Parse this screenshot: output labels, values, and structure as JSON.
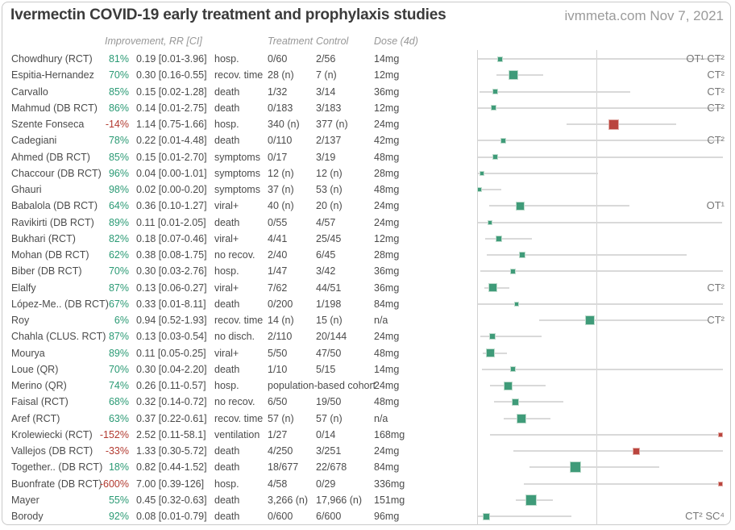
{
  "header": {
    "title": "Ivermectin COVID-19 early treatment and prophylaxis studies",
    "watermark": "ivmmeta.com Nov 7, 2021"
  },
  "columns": {
    "improvement_rr": "Improvement, RR [CI]",
    "treatment": "Treatment",
    "control": "Control",
    "dose": "Dose (4d)"
  },
  "colors": {
    "pct_green": "#2a9a74",
    "pct_red": "#b23a30",
    "marker_green": "#3f9b79",
    "marker_red": "#ba453e",
    "ci_line": "#d9d9d9",
    "axis_line": "#d2d2d2"
  },
  "chart_data": {
    "type": "forest",
    "title": "Ivermectin COVID-19 early treatment and prophylaxis studies",
    "axis": {
      "scale": "linear relative risk",
      "left_edge_rr": 0.0,
      "reference_line_rr": 1.0,
      "right_clip_rr": 2.05,
      "gridlines": false
    },
    "legend": {
      "green_marker": "improvement (RR < 1)",
      "red_marker": "worse outcome (RR > 1)",
      "marker_size": "study weight"
    },
    "studies": [
      {
        "name": "Chowdhury (RCT)",
        "improvement": "81%",
        "rr": 0.19,
        "ci": [
          0.01,
          3.96
        ],
        "rr_text": "0.19 [0.01-3.96]",
        "outcome": "hosp.",
        "treatment": "0/60",
        "control": "2/56",
        "dose": "14mg",
        "note": "OT¹ CT²",
        "weight": 5,
        "color": "green"
      },
      {
        "name": "Espitia-Hernandez",
        "improvement": "70%",
        "rr": 0.3,
        "ci": [
          0.16,
          0.55
        ],
        "rr_text": "0.30 [0.16-0.55]",
        "outcome": "recov. time",
        "treatment": "28 (n)",
        "control": "7 (n)",
        "dose": "12mg",
        "note": "CT²",
        "weight": 10,
        "color": "green"
      },
      {
        "name": "Carvallo",
        "improvement": "85%",
        "rr": 0.15,
        "ci": [
          0.02,
          1.28
        ],
        "rr_text": "0.15 [0.02-1.28]",
        "outcome": "death",
        "treatment": "1/32",
        "control": "3/14",
        "dose": "36mg",
        "note": "CT²",
        "weight": 5,
        "color": "green"
      },
      {
        "name": "Mahmud (DB RCT)",
        "improvement": "86%",
        "rr": 0.14,
        "ci": [
          0.01,
          2.75
        ],
        "rr_text": "0.14 [0.01-2.75]",
        "outcome": "death",
        "treatment": "0/183",
        "control": "3/183",
        "dose": "12mg",
        "note": "CT²",
        "weight": 5,
        "color": "green"
      },
      {
        "name": "Szente Fonseca",
        "improvement": "-14%",
        "rr": 1.14,
        "ci": [
          0.75,
          1.66
        ],
        "rr_text": "1.14 [0.75-1.66]",
        "outcome": "hosp.",
        "treatment": "340 (n)",
        "control": "377 (n)",
        "dose": "24mg",
        "note": "",
        "weight": 11,
        "color": "red"
      },
      {
        "name": "Cadegiani",
        "improvement": "78%",
        "rr": 0.22,
        "ci": [
          0.01,
          4.48
        ],
        "rr_text": "0.22 [0.01-4.48]",
        "outcome": "death",
        "treatment": "0/110",
        "control": "2/137",
        "dose": "42mg",
        "note": "CT²",
        "weight": 5,
        "color": "green"
      },
      {
        "name": "Ahmed (DB RCT)",
        "improvement": "85%",
        "rr": 0.15,
        "ci": [
          0.01,
          2.7
        ],
        "rr_text": "0.15 [0.01-2.70]",
        "outcome": "symptoms",
        "treatment": "0/17",
        "control": "3/19",
        "dose": "48mg",
        "note": "",
        "weight": 5,
        "color": "green"
      },
      {
        "name": "Chaccour (DB RCT)",
        "improvement": "96%",
        "rr": 0.04,
        "ci": [
          0.0,
          1.01
        ],
        "rr_text": "0.04 [0.00-1.01]",
        "outcome": "symptoms",
        "treatment": "12 (n)",
        "control": "12 (n)",
        "dose": "28mg",
        "note": "",
        "weight": 4,
        "color": "green"
      },
      {
        "name": "Ghauri",
        "improvement": "98%",
        "rr": 0.02,
        "ci": [
          0.0,
          0.2
        ],
        "rr_text": "0.02 [0.00-0.20]",
        "outcome": "symptoms",
        "treatment": "37 (n)",
        "control": "53 (n)",
        "dose": "48mg",
        "note": "",
        "weight": 4,
        "color": "green"
      },
      {
        "name": "Babalola (DB RCT)",
        "improvement": "64%",
        "rr": 0.36,
        "ci": [
          0.1,
          1.27
        ],
        "rr_text": "0.36 [0.10-1.27]",
        "outcome": "viral+",
        "treatment": "40 (n)",
        "control": "20 (n)",
        "dose": "24mg",
        "note": "OT¹",
        "weight": 9,
        "color": "green"
      },
      {
        "name": "Ravikirti (DB RCT)",
        "improvement": "89%",
        "rr": 0.11,
        "ci": [
          0.01,
          2.05
        ],
        "rr_text": "0.11 [0.01-2.05]",
        "outcome": "death",
        "treatment": "0/55",
        "control": "4/57",
        "dose": "24mg",
        "note": "",
        "weight": 4,
        "color": "green"
      },
      {
        "name": "Bukhari (RCT)",
        "improvement": "82%",
        "rr": 0.18,
        "ci": [
          0.07,
          0.46
        ],
        "rr_text": "0.18 [0.07-0.46]",
        "outcome": "viral+",
        "treatment": "4/41",
        "control": "25/45",
        "dose": "12mg",
        "note": "",
        "weight": 6,
        "color": "green"
      },
      {
        "name": "Mohan (DB RCT)",
        "improvement": "62%",
        "rr": 0.38,
        "ci": [
          0.08,
          1.75
        ],
        "rr_text": "0.38 [0.08-1.75]",
        "outcome": "no recov.",
        "treatment": "2/40",
        "control": "6/45",
        "dose": "28mg",
        "note": "",
        "weight": 6,
        "color": "green"
      },
      {
        "name": "Biber (DB RCT)",
        "improvement": "70%",
        "rr": 0.3,
        "ci": [
          0.03,
          2.76
        ],
        "rr_text": "0.30 [0.03-2.76]",
        "outcome": "hosp.",
        "treatment": "1/47",
        "control": "3/42",
        "dose": "36mg",
        "note": "",
        "weight": 5,
        "color": "green"
      },
      {
        "name": "Elalfy",
        "improvement": "87%",
        "rr": 0.13,
        "ci": [
          0.06,
          0.27
        ],
        "rr_text": "0.13 [0.06-0.27]",
        "outcome": "viral+",
        "treatment": "7/62",
        "control": "44/51",
        "dose": "36mg",
        "note": "CT²",
        "weight": 9,
        "color": "green"
      },
      {
        "name": "López-Me.. (DB RCT)",
        "improvement": "67%",
        "rr": 0.33,
        "ci": [
          0.01,
          8.11
        ],
        "rr_text": "0.33 [0.01-8.11]",
        "outcome": "death",
        "treatment": "0/200",
        "control": "1/198",
        "dose": "84mg",
        "note": "",
        "weight": 4,
        "color": "green"
      },
      {
        "name": "Roy",
        "improvement": "6%",
        "rr": 0.94,
        "ci": [
          0.52,
          1.93
        ],
        "rr_text": "0.94 [0.52-1.93]",
        "outcome": "recov. time",
        "treatment": "14 (n)",
        "control": "15 (n)",
        "dose": "n/a",
        "note": "CT²",
        "weight": 10,
        "color": "green"
      },
      {
        "name": "Chahla (CLUS. RCT)",
        "improvement": "87%",
        "rr": 0.13,
        "ci": [
          0.03,
          0.54
        ],
        "rr_text": "0.13 [0.03-0.54]",
        "outcome": "no disch.",
        "treatment": "2/110",
        "control": "20/144",
        "dose": "24mg",
        "note": "",
        "weight": 6,
        "color": "green"
      },
      {
        "name": "Mourya",
        "improvement": "89%",
        "rr": 0.11,
        "ci": [
          0.05,
          0.25
        ],
        "rr_text": "0.11 [0.05-0.25]",
        "outcome": "viral+",
        "treatment": "5/50",
        "control": "47/50",
        "dose": "48mg",
        "note": "",
        "weight": 9,
        "color": "green"
      },
      {
        "name": "Loue (QR)",
        "improvement": "70%",
        "rr": 0.3,
        "ci": [
          0.04,
          2.2
        ],
        "rr_text": "0.30 [0.04-2.20]",
        "outcome": "death",
        "treatment": "1/10",
        "control": "5/15",
        "dose": "14mg",
        "note": "",
        "weight": 5,
        "color": "green"
      },
      {
        "name": "Merino (QR)",
        "improvement": "74%",
        "rr": 0.26,
        "ci": [
          0.11,
          0.57
        ],
        "rr_text": "0.26 [0.11-0.57]",
        "outcome": "hosp.",
        "treatment": "population-based cohort",
        "control": "",
        "dose": "24mg",
        "note": "",
        "weight": 9,
        "color": "green"
      },
      {
        "name": "Faisal (RCT)",
        "improvement": "68%",
        "rr": 0.32,
        "ci": [
          0.14,
          0.72
        ],
        "rr_text": "0.32 [0.14-0.72]",
        "outcome": "no recov.",
        "treatment": "6/50",
        "control": "19/50",
        "dose": "48mg",
        "note": "",
        "weight": 7,
        "color": "green"
      },
      {
        "name": "Aref (RCT)",
        "improvement": "63%",
        "rr": 0.37,
        "ci": [
          0.22,
          0.61
        ],
        "rr_text": "0.37 [0.22-0.61]",
        "outcome": "recov. time",
        "treatment": "57 (n)",
        "control": "57 (n)",
        "dose": "n/a",
        "note": "",
        "weight": 10,
        "color": "green"
      },
      {
        "name": "Krolewiecki (RCT)",
        "improvement": "-152%",
        "rr": 2.52,
        "ci": [
          0.11,
          58.1
        ],
        "rr_text": "2.52 [0.11-58.1]",
        "outcome": "ventilation",
        "treatment": "1/27",
        "control": "0/14",
        "dose": "168mg",
        "note": "",
        "weight": 4,
        "color": "red"
      },
      {
        "name": "Vallejos (DB RCT)",
        "improvement": "-33%",
        "rr": 1.33,
        "ci": [
          0.3,
          5.72
        ],
        "rr_text": "1.33 [0.30-5.72]",
        "outcome": "death",
        "treatment": "4/250",
        "control": "3/251",
        "dose": "24mg",
        "note": "",
        "weight": 7,
        "color": "red"
      },
      {
        "name": "Together.. (DB RCT)",
        "improvement": "18%",
        "rr": 0.82,
        "ci": [
          0.44,
          1.52
        ],
        "rr_text": "0.82 [0.44-1.52]",
        "outcome": "death",
        "treatment": "18/677",
        "control": "22/678",
        "dose": "84mg",
        "note": "",
        "weight": 12,
        "color": "green"
      },
      {
        "name": "Buonfrate (DB RCT)",
        "improvement": "-600%",
        "rr": 7.0,
        "ci": [
          0.39,
          126
        ],
        "rr_text": "7.00 [0.39-126]",
        "outcome": "hosp.",
        "treatment": "4/58",
        "control": "0/29",
        "dose": "336mg",
        "note": "",
        "weight": 4,
        "color": "red"
      },
      {
        "name": "Mayer",
        "improvement": "55%",
        "rr": 0.45,
        "ci": [
          0.32,
          0.63
        ],
        "rr_text": "0.45 [0.32-0.63]",
        "outcome": "death",
        "treatment": "3,266 (n)",
        "control": "17,966 (n)",
        "dose": "151mg",
        "note": "",
        "weight": 12,
        "color": "green"
      },
      {
        "name": "Borody",
        "improvement": "92%",
        "rr": 0.08,
        "ci": [
          0.01,
          0.79
        ],
        "rr_text": "0.08 [0.01-0.79]",
        "outcome": "death",
        "treatment": "0/600",
        "control": "6/600",
        "dose": "96mg",
        "note": "CT² SC⁴",
        "weight": 7,
        "color": "green"
      }
    ]
  }
}
